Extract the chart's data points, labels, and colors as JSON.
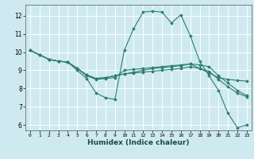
{
  "title": "",
  "xlabel": "Humidex (Indice chaleur)",
  "bg_color": "#ceeaf0",
  "grid_color": "#ffffff",
  "line_color": "#2e7d6e",
  "xlim": [
    -0.5,
    23.5
  ],
  "ylim": [
    5.7,
    12.6
  ],
  "xticks": [
    0,
    1,
    2,
    3,
    4,
    5,
    6,
    7,
    8,
    9,
    10,
    11,
    12,
    13,
    14,
    15,
    16,
    17,
    18,
    19,
    20,
    21,
    22,
    23
  ],
  "yticks": [
    6,
    7,
    8,
    9,
    10,
    11,
    12
  ],
  "series": [
    {
      "x": [
        0,
        1,
        2,
        3,
        4,
        5,
        6,
        7,
        8,
        9,
        10,
        11,
        12,
        13,
        14,
        15,
        16,
        17,
        18,
        19,
        20,
        21,
        22,
        23
      ],
      "y": [
        10.1,
        9.85,
        9.6,
        9.5,
        9.45,
        9.0,
        8.55,
        7.75,
        7.5,
        7.4,
        10.1,
        11.3,
        12.2,
        12.25,
        12.2,
        11.6,
        12.05,
        10.9,
        9.5,
        8.7,
        7.9,
        6.65,
        5.85,
        6.0
      ]
    },
    {
      "x": [
        0,
        1,
        2,
        3,
        4,
        5,
        6,
        7,
        8,
        9,
        10,
        11,
        12,
        13,
        14,
        15,
        16,
        17,
        18,
        19,
        20,
        21,
        22,
        23
      ],
      "y": [
        10.1,
        9.85,
        9.6,
        9.5,
        9.45,
        9.1,
        8.7,
        8.5,
        8.55,
        8.6,
        9.0,
        9.05,
        9.1,
        9.15,
        9.2,
        9.25,
        9.3,
        9.35,
        9.1,
        8.85,
        8.6,
        8.5,
        8.45,
        8.4
      ]
    },
    {
      "x": [
        0,
        1,
        2,
        3,
        4,
        5,
        6,
        7,
        8,
        9,
        10,
        11,
        12,
        13,
        14,
        15,
        16,
        17,
        18,
        19,
        20,
        21,
        22,
        23
      ],
      "y": [
        10.1,
        9.85,
        9.6,
        9.5,
        9.45,
        9.1,
        8.75,
        8.55,
        8.6,
        8.7,
        8.8,
        8.9,
        9.0,
        9.1,
        9.15,
        9.2,
        9.25,
        9.35,
        9.3,
        9.2,
        8.7,
        8.3,
        7.9,
        7.6
      ]
    },
    {
      "x": [
        0,
        1,
        2,
        3,
        4,
        5,
        6,
        7,
        8,
        9,
        10,
        11,
        12,
        13,
        14,
        15,
        16,
        17,
        18,
        19,
        20,
        21,
        22,
        23
      ],
      "y": [
        10.1,
        9.85,
        9.6,
        9.5,
        9.45,
        9.1,
        8.75,
        8.55,
        8.6,
        8.7,
        8.8,
        8.85,
        8.9,
        8.95,
        9.0,
        9.05,
        9.1,
        9.2,
        9.1,
        8.95,
        8.5,
        8.1,
        7.75,
        7.55
      ]
    }
  ]
}
